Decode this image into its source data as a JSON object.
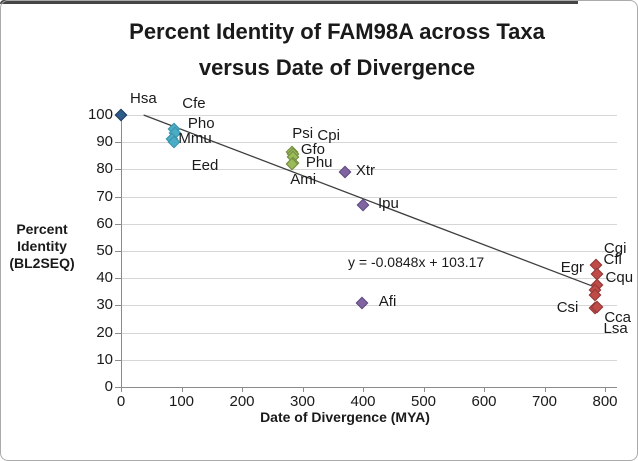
{
  "chart_data": {
    "type": "scatter",
    "title_line1": "Percent Identity of FAM98A across Taxa",
    "title_line2": "versus Date of Divergence",
    "xlabel": "Date of Divergence (MYA)",
    "ylabel_lines": [
      "Percent",
      "Identity",
      "(BL2SEQ)"
    ],
    "xlim": [
      0,
      820
    ],
    "ylim": [
      0,
      100
    ],
    "x_ticks": [
      0,
      100,
      200,
      300,
      400,
      500,
      600,
      700,
      800
    ],
    "y_ticks": [
      100,
      90,
      80,
      70,
      60,
      50,
      40,
      30,
      20,
      10,
      0
    ],
    "grid": "horizontal",
    "legend": "none",
    "trendline": {
      "equation_text": "y = -0.0848x + 103.17",
      "slope": -0.0848,
      "intercept": 103.17,
      "x_start": 37.4,
      "x_end": 785,
      "color": "#3f3f3f"
    },
    "series": [
      {
        "name": "navy",
        "color": "#2E5C8A",
        "edge": "#1E3C5C",
        "points": [
          {
            "label": "Hsa",
            "x": 0,
            "y": 100,
            "lx": 9,
            "ly": -24
          }
        ]
      },
      {
        "name": "teal",
        "color": "#4BACC6",
        "edge": "#3A91A8",
        "points": [
          {
            "label": "Cfe",
            "x": 88,
            "y": 95,
            "lx": 8,
            "ly": -33
          },
          {
            "label": "Pho",
            "x": 89,
            "y": 93.5,
            "lx": 13,
            "ly": -17
          },
          {
            "label": "Mmu",
            "x": 85,
            "y": 91,
            "lx": 6,
            "ly": -8
          },
          {
            "label": "Eed",
            "x": 87,
            "y": 90,
            "lx": 18,
            "ly": 16
          }
        ]
      },
      {
        "name": "green",
        "color": "#9BBB59",
        "edge": "#71893F",
        "points": [
          {
            "label": "Psi",
            "x": 283,
            "y": 86.5,
            "lx": 0,
            "ly": -26
          },
          {
            "label": "Cpi",
            "x": 285,
            "y": 85.5,
            "lx": 24,
            "ly": -26
          },
          {
            "label": "Gfo",
            "x": 284,
            "y": 84.5,
            "lx": 8,
            "ly": -15
          },
          {
            "label": "Phu",
            "x": 284,
            "y": 82.5,
            "lx": 13,
            "ly": -8
          },
          {
            "label": "Ami",
            "x": 283,
            "y": 82,
            "lx": -2,
            "ly": 8
          }
        ]
      },
      {
        "name": "purple",
        "color": "#8064A2",
        "edge": "#5F4A7D",
        "points": [
          {
            "label": "Xtr",
            "x": 370,
            "y": 79,
            "lx": 11,
            "ly": -9
          },
          {
            "label": "Ipu",
            "x": 400,
            "y": 67,
            "lx": 15,
            "ly": -9
          },
          {
            "label": "Afi",
            "x": 398,
            "y": 31,
            "lx": 17,
            "ly": -9
          }
        ]
      },
      {
        "name": "red",
        "color": "#BE4B48",
        "edge": "#8E3836",
        "points": [
          {
            "label": "Cgi",
            "x": 785,
            "y": 45,
            "lx": 8,
            "ly": -24
          },
          {
            "label": "Cfl",
            "x": 786,
            "y": 41.5,
            "lx": 7,
            "ly": -22
          },
          {
            "label": "Cqu",
            "x": 786,
            "y": 37.5,
            "lx": 9,
            "ly": -15
          },
          {
            "label": "Egr",
            "x": 783,
            "y": 35.5,
            "lx": -34,
            "ly": -30
          },
          {
            "label": "Cca",
            "x": 784,
            "y": 34,
            "lx": 9,
            "ly": 15
          },
          {
            "label": "Csi",
            "x": 783,
            "y": 29,
            "lx": -38,
            "ly": -8
          },
          {
            "label": "Lsa",
            "x": 786,
            "y": 29.5,
            "lx": 7,
            "ly": 14
          }
        ]
      }
    ]
  }
}
